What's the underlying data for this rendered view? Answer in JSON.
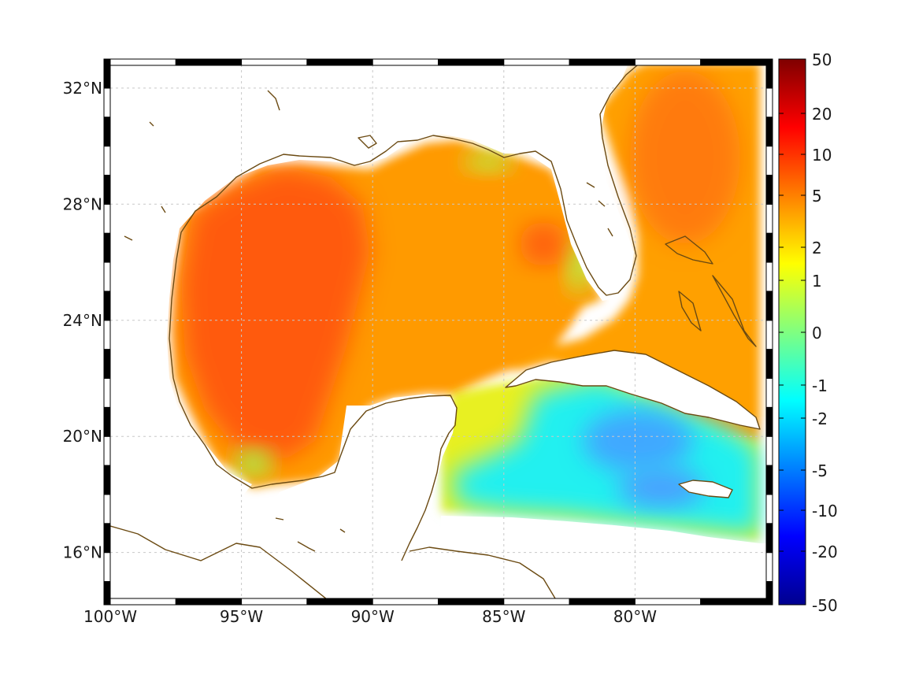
{
  "map": {
    "lon_range": [
      -100,
      -75
    ],
    "lat_range": [
      14.2,
      33
    ],
    "lon_ticks": [
      {
        "value": -100,
        "label": "100°W"
      },
      {
        "value": -95,
        "label": "95°W"
      },
      {
        "value": -90,
        "label": "90°W"
      },
      {
        "value": -85,
        "label": "85°W"
      },
      {
        "value": -80,
        "label": "80°W"
      }
    ],
    "lat_ticks": [
      {
        "value": 16,
        "label": "16°N"
      },
      {
        "value": 20,
        "label": "20°N"
      },
      {
        "value": 24,
        "label": "24°N"
      },
      {
        "value": 28,
        "label": "28°N"
      },
      {
        "value": 32,
        "label": "32°N"
      }
    ],
    "grid": true,
    "coastline_color": "#6b4a12"
  },
  "colorbar": {
    "tick_labels": [
      "50",
      "20",
      "10",
      "5",
      "2",
      "1",
      "0",
      "-1",
      "-2",
      "-5",
      "-10",
      "-20",
      "-50"
    ],
    "colors": [
      "#7f0000",
      "#ff0000",
      "#ff8000",
      "#ffff00",
      "#80ff80",
      "#00ffff",
      "#0080ff",
      "#0000ff",
      "#00008f"
    ]
  }
}
